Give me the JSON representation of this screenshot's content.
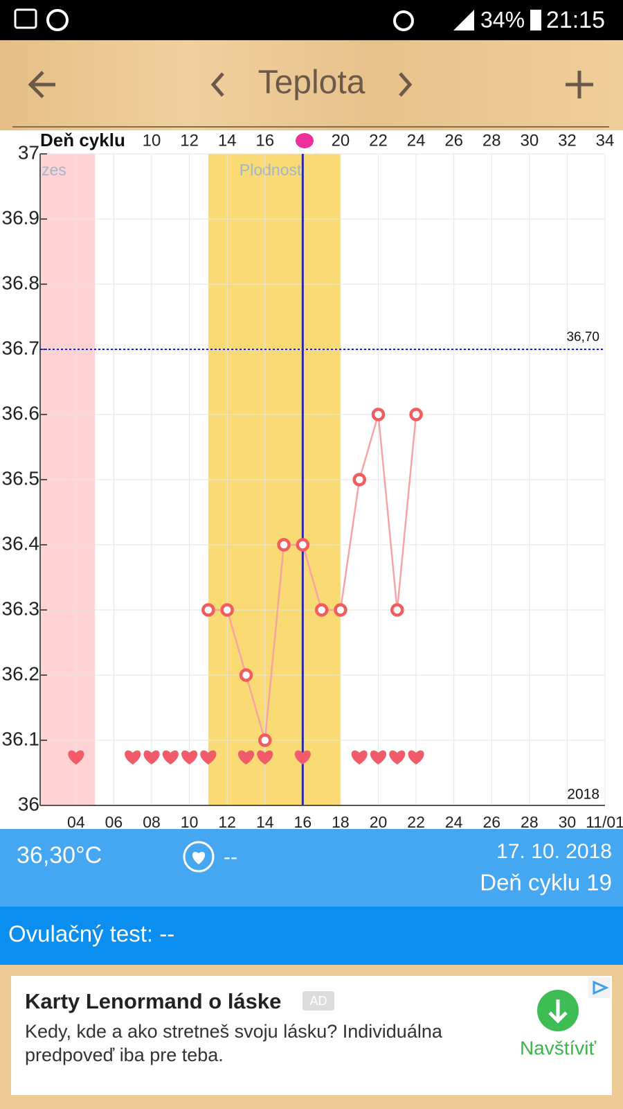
{
  "status_bar": {
    "battery": "34%",
    "time": "21:15"
  },
  "header": {
    "title": "Teplota"
  },
  "chart_data": {
    "type": "line",
    "x_label": "Deň cyklu",
    "x": [
      11,
      12,
      13,
      14,
      15,
      16,
      17,
      18,
      19,
      20,
      21,
      22
    ],
    "values": [
      36.3,
      36.3,
      36.2,
      36.1,
      36.4,
      36.4,
      36.3,
      36.3,
      36.5,
      36.6,
      36.3,
      36.6
    ],
    "color": "#f25c5c",
    "line_color": "#f7a3a3",
    "xlim": [
      2.1,
      32
    ],
    "xticks": [
      {
        "value": 4,
        "label": "04"
      },
      {
        "value": 6,
        "label": "06"
      },
      {
        "value": 8,
        "label": "08"
      },
      10,
      12,
      14,
      16,
      18,
      20,
      22,
      24,
      26,
      28,
      30,
      {
        "value": 32,
        "label": "11/01"
      }
    ],
    "x2lim": [
      4.1,
      34
    ],
    "x2ticks": [
      10,
      12,
      14,
      16,
      20,
      22,
      24,
      26,
      28,
      30,
      32,
      34
    ],
    "ylim": [
      36,
      37
    ],
    "yticks": [
      36,
      36.1,
      36.2,
      36.3,
      36.4,
      36.5,
      36.6,
      36.7,
      36.8,
      36.9,
      37
    ],
    "grid": true,
    "reference_line": {
      "value": 36.7,
      "label": "36,70"
    },
    "year_label": "2018",
    "bands": [
      {
        "from": 2.1,
        "to": 5,
        "color": "#ffd3d3",
        "label": "zes"
      },
      {
        "from": 11,
        "to": 18,
        "color": "#f9da74",
        "label": "Plodnosť"
      }
    ],
    "marker_line": 16,
    "hearts": [
      4,
      7,
      8,
      9,
      10,
      11,
      13,
      14,
      16,
      19,
      20,
      21,
      22
    ]
  },
  "info": {
    "temperature": "36,30°C",
    "intercourse": "--",
    "date": "17. 10. 2018",
    "cycle_day": "Deň cyklu 19"
  },
  "ovulation_test": "Ovulačný test: --",
  "ad": {
    "title": "Karty Lenormand o láske",
    "badge": "AD",
    "text_lines": [
      "Kedy, kde a ako stretneš svoju lásku? Individuálna",
      "predpoveď iba pre teba."
    ],
    "button": "Navštíviť"
  }
}
